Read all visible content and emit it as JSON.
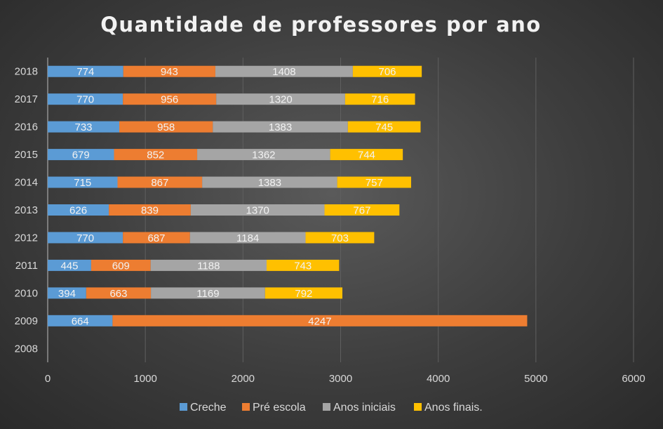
{
  "chart_data": {
    "type": "bar",
    "orientation": "horizontal",
    "stacked": true,
    "title": "Quantidade de professores por ano",
    "categories": [
      "2018",
      "2017",
      "2016",
      "2015",
      "2014",
      "2013",
      "2012",
      "2011",
      "2010",
      "2009",
      "2008"
    ],
    "series": [
      {
        "name": "Creche",
        "color": "#5b9bd5",
        "values": [
          774,
          770,
          733,
          679,
          715,
          626,
          770,
          445,
          394,
          664,
          null
        ]
      },
      {
        "name": "Pré escola",
        "color": "#ed7d31",
        "values": [
          943,
          956,
          958,
          852,
          867,
          839,
          687,
          609,
          663,
          4247,
          null
        ]
      },
      {
        "name": "Anos iniciais",
        "color": "#a5a5a5",
        "values": [
          1408,
          1320,
          1383,
          1362,
          1383,
          1370,
          1184,
          1188,
          1169,
          null,
          null
        ]
      },
      {
        "name": "Anos finais.",
        "color": "#ffc000",
        "values": [
          706,
          716,
          745,
          744,
          757,
          767,
          703,
          743,
          792,
          null,
          null
        ]
      }
    ],
    "xlim": [
      0,
      6000
    ],
    "xticks": [
      0,
      1000,
      2000,
      3000,
      4000,
      5000,
      6000
    ],
    "grid": true,
    "legend_position": "bottom",
    "data_labels": true
  }
}
